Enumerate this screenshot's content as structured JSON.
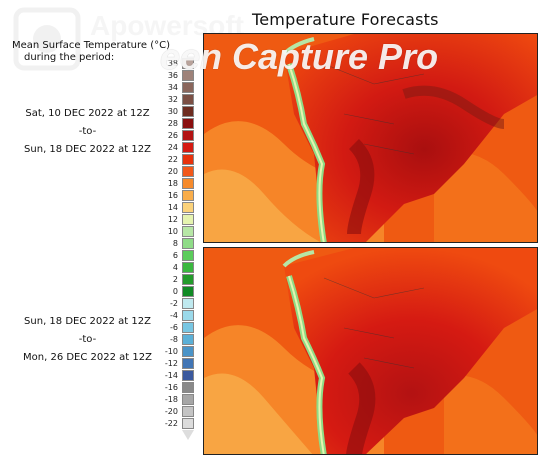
{
  "title": "Temperature Forecasts",
  "subtitle": [
    "Mean Surface Temperature (°C)",
    "during the period:"
  ],
  "periods": [
    {
      "start": "Sat, 10 DEC 2022 at 12Z",
      "sep": "-to-",
      "end": "Sun, 18 DEC 2022 at 12Z"
    },
    {
      "start": "Sun, 18 DEC 2022 at 12Z",
      "sep": "-to-",
      "end": "Mon, 26 DEC 2022 at 12Z"
    }
  ],
  "legend": {
    "ticks": [
      "38",
      "36",
      "34",
      "32",
      "30",
      "28",
      "26",
      "24",
      "22",
      "20",
      "18",
      "16",
      "14",
      "12",
      "10",
      "8",
      "6",
      "4",
      "2",
      "0",
      "-2",
      "-4",
      "-6",
      "-8",
      "-10",
      "-12",
      "-14",
      "-16",
      "-18",
      "-20",
      "-22"
    ],
    "colors": [
      "#b9a39b",
      "#9e8279",
      "#8a665c",
      "#7b4f44",
      "#6d2c20",
      "#8a0e0e",
      "#b31212",
      "#d51a12",
      "#e8320c",
      "#f2581a",
      "#f68a2b",
      "#f9ad4a",
      "#fbd27a",
      "#e6f4b0",
      "#b7e7a6",
      "#8fdc87",
      "#5bcc5b",
      "#3bb83f",
      "#239b2b",
      "#118a25",
      "#bfe9ef",
      "#9bd9ea",
      "#78c6e2",
      "#5bb0d7",
      "#4b94c8",
      "#4175b5",
      "#3a599e",
      "#898989",
      "#a6a6a6",
      "#c4c4c4",
      "#dcdcdc"
    ]
  },
  "watermark": {
    "brand": "Apowersoft",
    "product": "een Capture Pro"
  }
}
